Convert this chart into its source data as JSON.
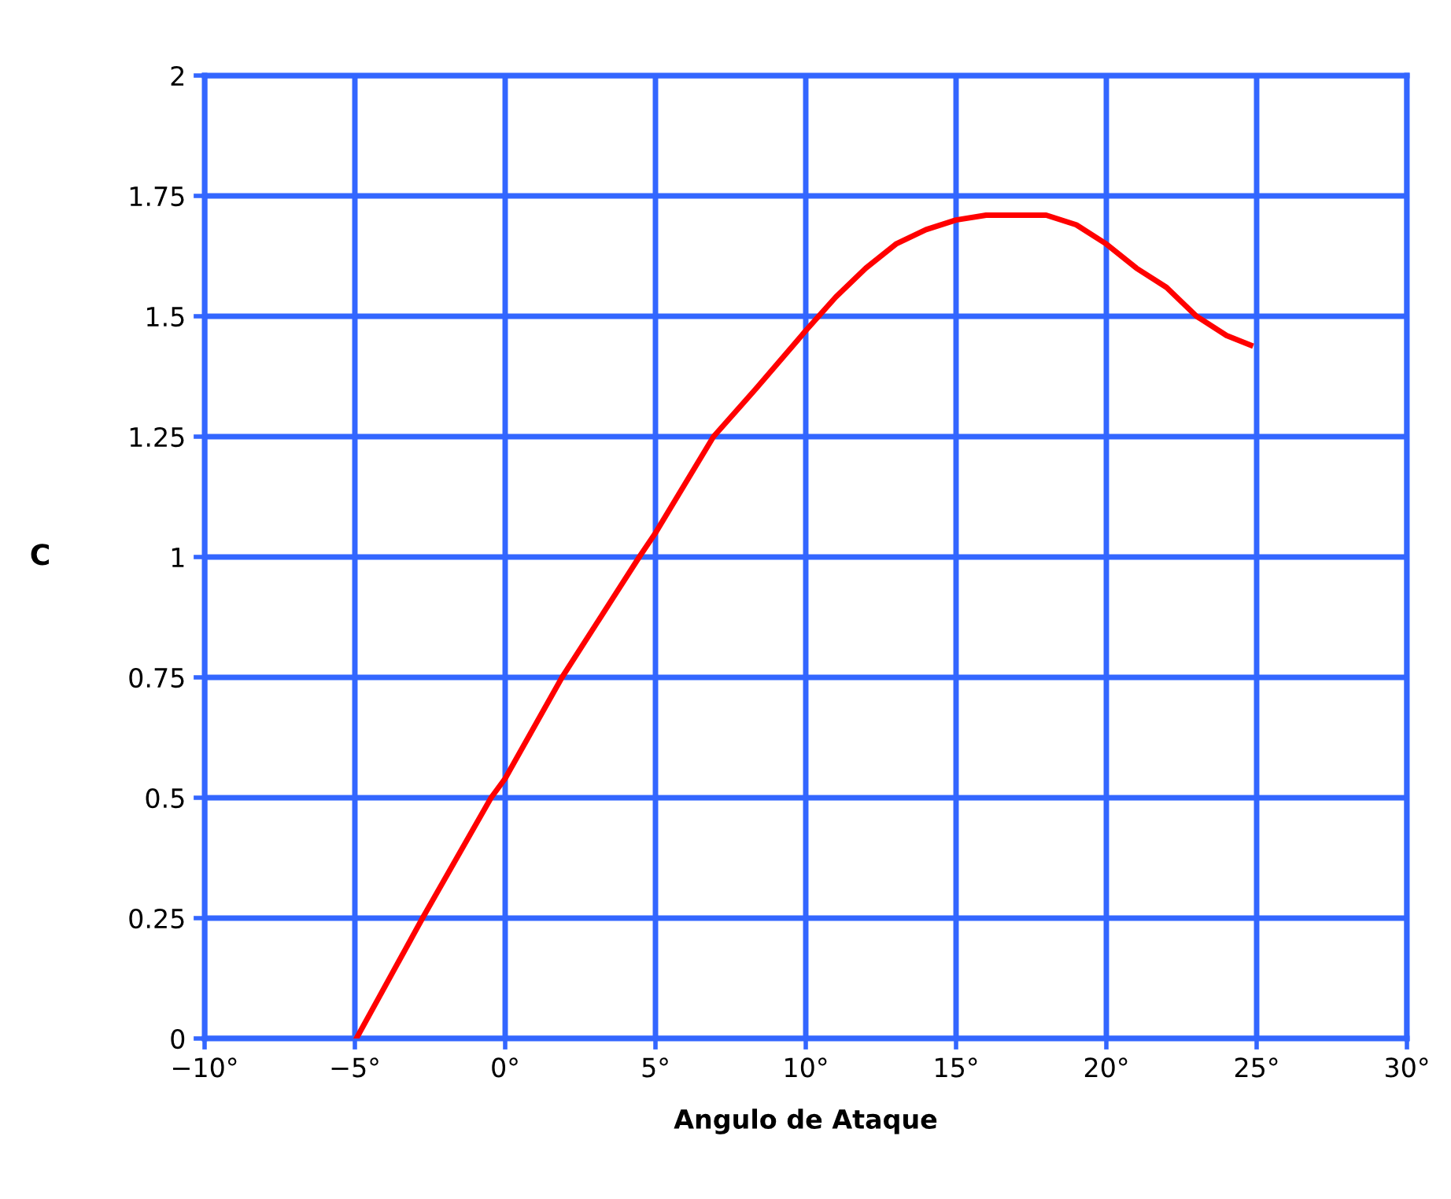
{
  "chart_data": {
    "type": "line",
    "xlabel": "Angulo de Ataque",
    "ylabel": "C",
    "x": [
      -4.95,
      -2.75,
      -0.47,
      0,
      1.89,
      4.46,
      5,
      6.93,
      8.35,
      10,
      11,
      12,
      13,
      14,
      15,
      16,
      17,
      18,
      19,
      20,
      21,
      22,
      23,
      24,
      24.8
    ],
    "series": [
      {
        "color": "#ff0000",
        "values": [
          0,
          0.25,
          0.5,
          0.54,
          0.75,
          1.0,
          1.05,
          1.25,
          1.35,
          1.47,
          1.54,
          1.6,
          1.65,
          1.68,
          1.7,
          1.71,
          1.71,
          1.71,
          1.69,
          1.65,
          1.6,
          1.56,
          1.5,
          1.46,
          1.44
        ]
      }
    ],
    "xlim": [
      -10,
      30
    ],
    "ylim": [
      0,
      2
    ],
    "xticks": [
      {
        "value": -10,
        "label": "−10°"
      },
      {
        "value": -5,
        "label": "−5°"
      },
      {
        "value": 0,
        "label": "0°"
      },
      {
        "value": 5,
        "label": "5°"
      },
      {
        "value": 10,
        "label": "10°"
      },
      {
        "value": 15,
        "label": "15°"
      },
      {
        "value": 20,
        "label": "20°"
      },
      {
        "value": 25,
        "label": "25°"
      },
      {
        "value": 30,
        "label": "30°"
      }
    ],
    "yticks": [
      0,
      0.25,
      0.5,
      0.75,
      1,
      1.25,
      1.5,
      1.75,
      2
    ],
    "grid": true,
    "marker": "none",
    "line_style": "solid"
  }
}
